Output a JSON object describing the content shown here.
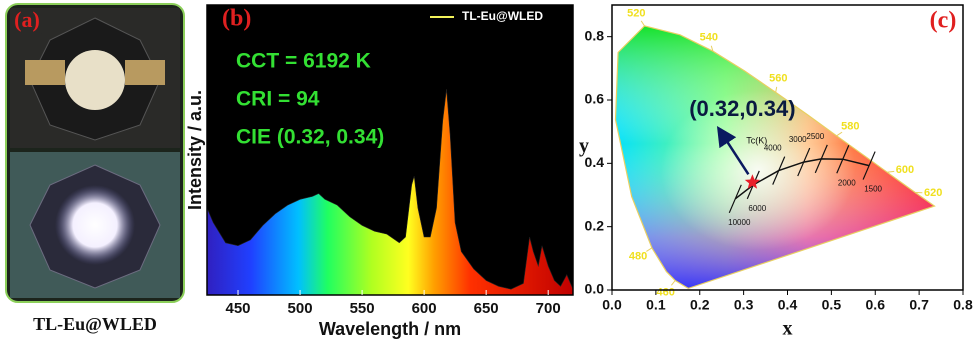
{
  "panel_a": {
    "label": "(a)",
    "caption": "TL-Eu@WLED"
  },
  "chart_data": [
    {
      "type": "area",
      "label": "(b)",
      "xlabel": "Wavelength / nm",
      "ylabel": "Intensity / a.u.",
      "xlim": [
        425,
        720
      ],
      "xticks": [
        450,
        500,
        550,
        600,
        650,
        700
      ],
      "ylim": [
        0,
        1
      ],
      "legend": "upper right",
      "annotations": [
        "CCT = 6192 K",
        "CRI = 94",
        "CIE (0.32, 0.34)"
      ],
      "series": [
        {
          "name": "TL-Eu@WLED",
          "color": "#f2f25a",
          "x": [
            425,
            430,
            440,
            450,
            460,
            470,
            480,
            490,
            500,
            510,
            515,
            520,
            530,
            540,
            550,
            560,
            570,
            580,
            585,
            590,
            592,
            595,
            600,
            605,
            610,
            615,
            618,
            621,
            625,
            630,
            640,
            650,
            660,
            670,
            680,
            685,
            688,
            692,
            695,
            700,
            705,
            710,
            715,
            720
          ],
          "values": [
            0.3,
            0.25,
            0.18,
            0.17,
            0.19,
            0.24,
            0.28,
            0.31,
            0.33,
            0.34,
            0.35,
            0.33,
            0.31,
            0.27,
            0.24,
            0.22,
            0.21,
            0.18,
            0.2,
            0.38,
            0.41,
            0.3,
            0.2,
            0.2,
            0.3,
            0.6,
            0.71,
            0.55,
            0.25,
            0.15,
            0.09,
            0.05,
            0.03,
            0.02,
            0.04,
            0.2,
            0.15,
            0.1,
            0.17,
            0.1,
            0.05,
            0.03,
            0.07,
            0.02
          ]
        }
      ]
    },
    {
      "type": "cie",
      "label": "(c)",
      "xlabel": "x",
      "ylabel": "y",
      "xlim": [
        0,
        0.8
      ],
      "ylim": [
        0,
        0.9
      ],
      "xticks": [
        {
          "value": 0,
          "label": "0.0"
        },
        0.1,
        0.2,
        0.3,
        0.4,
        0.5,
        0.6,
        0.7,
        0.8
      ],
      "yticks": [
        {
          "value": 0,
          "label": "0.0"
        },
        0.2,
        0.4,
        0.6,
        0.8
      ],
      "spectral_locus": {
        "x": [
          0.174,
          0.144,
          0.124,
          0.091,
          0.045,
          0.008,
          0.014,
          0.074,
          0.155,
          0.23,
          0.302,
          0.373,
          0.444,
          0.512,
          0.575,
          0.627,
          0.691,
          0.735
        ],
        "y": [
          0.005,
          0.03,
          0.058,
          0.133,
          0.295,
          0.538,
          0.75,
          0.834,
          0.806,
          0.754,
          0.692,
          0.624,
          0.555,
          0.487,
          0.424,
          0.372,
          0.308,
          0.265
        ],
        "labels": [
          null,
          "460",
          null,
          "480",
          null,
          null,
          null,
          "520",
          null,
          "540",
          null,
          "560",
          null,
          "580",
          null,
          "600",
          "620",
          null
        ]
      },
      "planckian_locus": {
        "title": "Tc(K)",
        "x": [
          0.281,
          0.322,
          0.38,
          0.437,
          0.477,
          0.526,
          0.586
        ],
        "y": [
          0.288,
          0.332,
          0.377,
          0.404,
          0.414,
          0.413,
          0.393
        ],
        "labels": [
          "10000",
          "6000",
          "4000",
          "3000",
          "2500",
          "2000",
          "1500"
        ]
      },
      "point": {
        "x": 0.32,
        "y": 0.34,
        "label": "(0.32,0.34)",
        "color": "#e8202a"
      }
    }
  ]
}
